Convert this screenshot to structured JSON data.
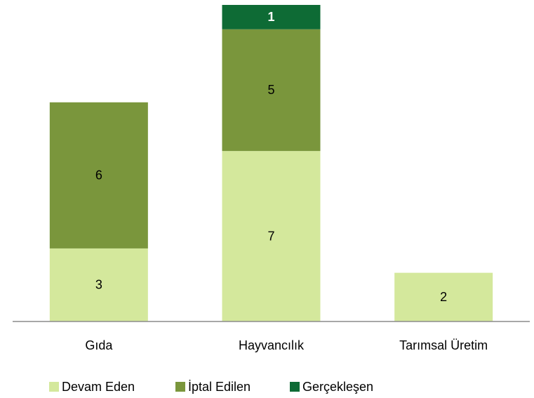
{
  "chart_data": {
    "type": "stacked_bar",
    "categories": [
      "Gıda",
      "Hayvancılık",
      "Tarımsal Üretim"
    ],
    "series": [
      {
        "name": "Devam Eden",
        "color": "#d4e89c",
        "values": [
          3,
          7,
          2
        ]
      },
      {
        "name": "İptal Edilen",
        "color": "#7a963c",
        "values": [
          6,
          5,
          null
        ]
      },
      {
        "name": "Gerçekleşen",
        "color": "#0e6b35",
        "values": [
          null,
          1,
          null
        ]
      }
    ],
    "ylim": [
      0,
      13
    ]
  }
}
